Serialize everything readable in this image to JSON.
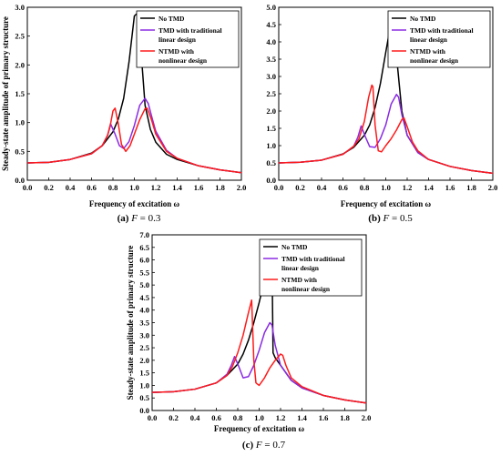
{
  "legend": {
    "no_tmd": "No TMD",
    "tmd_line1": "TMD with traditional",
    "tmd_line2": "linear design",
    "ntmd_line1": "NTMD with",
    "ntmd_line2": "nonlinear design"
  },
  "colors": {
    "no_tmd": "#000000",
    "tmd": "#8a2be2",
    "ntmd": "#ff1a1a"
  },
  "chart_data": [
    {
      "type": "line",
      "caption_label": "(a)",
      "caption_var": "F",
      "caption_rest": " = 0.3",
      "xlabel": "Frequency of excitation ω",
      "ylabel": "Steady-state amplitude of primary structure",
      "xlim": [
        0,
        2.0
      ],
      "ylim": [
        0,
        3.0
      ],
      "xticks": [
        "0.0",
        "0.2",
        "0.4",
        "0.6",
        "0.8",
        "1.0",
        "1.2",
        "1.4",
        "1.6",
        "1.8",
        "2.0"
      ],
      "yticks": [
        "0.0",
        "0.5",
        "1.0",
        "1.5",
        "2.0",
        "2.5",
        "3.0"
      ],
      "series": [
        {
          "name": "No TMD",
          "color": "#000000",
          "x": [
            0,
            0.2,
            0.4,
            0.6,
            0.7,
            0.8,
            0.85,
            0.9,
            0.95,
            1.0,
            1.03,
            1.06,
            1.1,
            1.15,
            1.2,
            1.3,
            1.4,
            1.6,
            1.8,
            2.0
          ],
          "y": [
            0.3,
            0.31,
            0.36,
            0.47,
            0.6,
            0.84,
            1.06,
            1.42,
            2.05,
            2.85,
            2.9,
            2.3,
            1.3,
            0.88,
            0.66,
            0.45,
            0.36,
            0.25,
            0.18,
            0.13
          ]
        },
        {
          "name": "TMD with traditional linear design",
          "color": "#8a2be2",
          "x": [
            0,
            0.2,
            0.4,
            0.6,
            0.7,
            0.75,
            0.78,
            0.82,
            0.86,
            0.9,
            0.95,
            1.0,
            1.05,
            1.1,
            1.13,
            1.17,
            1.2,
            1.3,
            1.4,
            1.6,
            1.8,
            2.0
          ],
          "y": [
            0.3,
            0.31,
            0.36,
            0.46,
            0.6,
            0.78,
            0.97,
            0.8,
            0.6,
            0.55,
            0.67,
            0.95,
            1.3,
            1.42,
            1.33,
            1.05,
            0.85,
            0.52,
            0.38,
            0.25,
            0.18,
            0.13
          ]
        },
        {
          "name": "NTMD with nonlinear design",
          "color": "#ff1a1a",
          "x": [
            0,
            0.2,
            0.4,
            0.6,
            0.7,
            0.75,
            0.78,
            0.8,
            0.82,
            0.85,
            0.88,
            0.92,
            0.96,
            1.0,
            1.05,
            1.1,
            1.12,
            1.16,
            1.2,
            1.3,
            1.4,
            1.6,
            1.8,
            2.0
          ],
          "y": [
            0.3,
            0.31,
            0.36,
            0.46,
            0.6,
            0.78,
            1.0,
            1.2,
            1.25,
            0.98,
            0.62,
            0.5,
            0.6,
            0.8,
            1.05,
            1.24,
            1.25,
            1.05,
            0.8,
            0.5,
            0.38,
            0.25,
            0.18,
            0.13
          ]
        }
      ]
    },
    {
      "type": "line",
      "caption_label": "(b)",
      "caption_var": "F",
      "caption_rest": " = 0.5",
      "xlabel": "Frequency of excitation ω",
      "ylabel": "",
      "xlim": [
        0,
        2.0
      ],
      "ylim": [
        0,
        5.0
      ],
      "xticks": [
        "0.0",
        "0.2",
        "0.4",
        "0.6",
        "0.8",
        "1.0",
        "1.2",
        "1.4",
        "1.6",
        "1.8",
        "2.0"
      ],
      "yticks": [
        "0.0",
        "0.5",
        "1.0",
        "1.5",
        "2.0",
        "2.5",
        "3.0",
        "3.5",
        "4.0",
        "4.5",
        "5.0"
      ],
      "series": [
        {
          "name": "No TMD",
          "color": "#000000",
          "x": [
            0,
            0.2,
            0.4,
            0.6,
            0.7,
            0.8,
            0.85,
            0.9,
            0.95,
            1.0,
            1.04,
            1.07,
            1.08,
            1.1,
            1.15,
            1.2,
            1.3,
            1.4,
            1.6,
            1.8,
            2.0
          ],
          "y": [
            0.5,
            0.52,
            0.58,
            0.76,
            0.95,
            1.3,
            1.6,
            2.1,
            2.8,
            3.7,
            4.4,
            4.65,
            4.6,
            3.6,
            2.0,
            1.3,
            0.8,
            0.6,
            0.4,
            0.28,
            0.2
          ]
        },
        {
          "name": "TMD with traditional linear design",
          "color": "#8a2be2",
          "x": [
            0,
            0.2,
            0.4,
            0.6,
            0.7,
            0.74,
            0.77,
            0.81,
            0.85,
            0.9,
            0.95,
            1.0,
            1.05,
            1.1,
            1.12,
            1.15,
            1.2,
            1.3,
            1.4,
            1.6,
            1.8,
            2.0
          ],
          "y": [
            0.5,
            0.52,
            0.58,
            0.75,
            0.98,
            1.25,
            1.57,
            1.25,
            0.97,
            0.95,
            1.2,
            1.6,
            2.2,
            2.48,
            2.4,
            1.9,
            1.3,
            0.8,
            0.6,
            0.4,
            0.28,
            0.2
          ]
        },
        {
          "name": "NTMD with nonlinear design",
          "color": "#ff1a1a",
          "x": [
            0,
            0.2,
            0.4,
            0.6,
            0.7,
            0.75,
            0.8,
            0.84,
            0.87,
            0.88,
            0.9,
            0.93,
            0.96,
            1.0,
            1.05,
            1.1,
            1.15,
            1.17,
            1.2,
            1.25,
            1.3,
            1.4,
            1.6,
            1.8,
            2.0
          ],
          "y": [
            0.5,
            0.52,
            0.58,
            0.75,
            0.98,
            1.2,
            1.7,
            2.4,
            2.75,
            2.7,
            1.6,
            0.85,
            0.82,
            1.0,
            1.2,
            1.45,
            1.75,
            1.8,
            1.55,
            1.1,
            0.85,
            0.6,
            0.4,
            0.28,
            0.2
          ]
        }
      ]
    },
    {
      "type": "line",
      "caption_label": "(c)",
      "caption_var": "F",
      "caption_rest": " = 0.7",
      "xlabel": "Frequency of excitation ω",
      "ylabel": "Steady-state amplitude of primary structure",
      "xlim": [
        0,
        2.0
      ],
      "ylim": [
        0,
        7.0
      ],
      "xticks": [
        "0.0",
        "0.2",
        "0.4",
        "0.6",
        "0.8",
        "1.0",
        "1.2",
        "1.4",
        "1.6",
        "1.8",
        "2.0"
      ],
      "yticks": [
        "0.0",
        "0.5",
        "1.0",
        "1.5",
        "2.0",
        "2.5",
        "3.0",
        "3.5",
        "4.0",
        "4.5",
        "5.0",
        "5.5",
        "6.0",
        "6.5",
        "7.0"
      ],
      "series": [
        {
          "name": "No TMD",
          "color": "#000000",
          "x": [
            0,
            0.2,
            0.4,
            0.6,
            0.7,
            0.8,
            0.85,
            0.9,
            0.95,
            1.0,
            1.05,
            1.1,
            1.12,
            1.13,
            1.15,
            1.2,
            1.3,
            1.4,
            1.6,
            1.8,
            2.0
          ],
          "y": [
            0.72,
            0.75,
            0.85,
            1.1,
            1.4,
            1.85,
            2.25,
            2.8,
            3.5,
            4.3,
            5.2,
            6.0,
            6.1,
            2.3,
            2.1,
            1.8,
            1.2,
            0.9,
            0.6,
            0.42,
            0.3
          ]
        },
        {
          "name": "TMD with traditional linear design",
          "color": "#8a2be2",
          "x": [
            0,
            0.2,
            0.4,
            0.6,
            0.7,
            0.74,
            0.77,
            0.81,
            0.85,
            0.9,
            0.95,
            1.0,
            1.05,
            1.1,
            1.12,
            1.15,
            1.2,
            1.3,
            1.4,
            1.6,
            1.8,
            2.0
          ],
          "y": [
            0.72,
            0.75,
            0.85,
            1.1,
            1.45,
            1.8,
            2.15,
            1.75,
            1.3,
            1.35,
            1.8,
            2.4,
            3.1,
            3.5,
            3.4,
            2.6,
            1.8,
            1.2,
            0.9,
            0.6,
            0.42,
            0.3
          ]
        },
        {
          "name": "NTMD with nonlinear design",
          "color": "#ff1a1a",
          "x": [
            0,
            0.2,
            0.4,
            0.6,
            0.7,
            0.75,
            0.8,
            0.85,
            0.9,
            0.93,
            0.95,
            0.97,
            1.0,
            1.05,
            1.1,
            1.15,
            1.2,
            1.22,
            1.25,
            1.3,
            1.4,
            1.6,
            1.8,
            2.0
          ],
          "y": [
            0.72,
            0.75,
            0.85,
            1.1,
            1.4,
            1.75,
            2.3,
            3.0,
            3.9,
            4.4,
            2.0,
            1.1,
            1.0,
            1.3,
            1.7,
            2.0,
            2.25,
            2.2,
            1.8,
            1.3,
            0.95,
            0.6,
            0.42,
            0.3
          ]
        }
      ]
    }
  ]
}
